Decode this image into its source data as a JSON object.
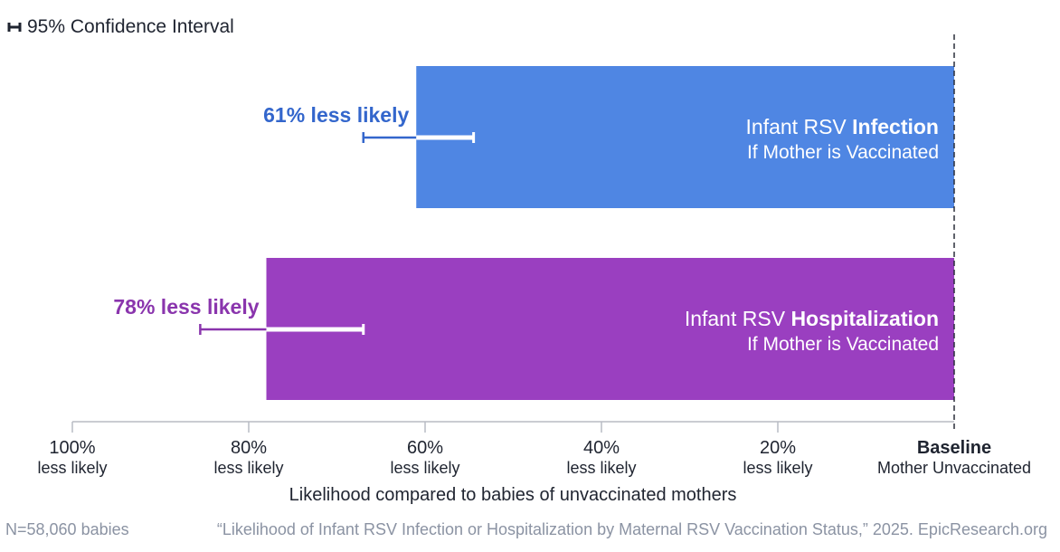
{
  "legend": {
    "label": "95% Confidence Interval",
    "icon": "ci-bracket-icon"
  },
  "chart_data": {
    "type": "bar",
    "orientation": "horizontal",
    "categories": [
      "Infant RSV Infection If Mother is Vaccinated",
      "Infant RSV Hospitalization If Mother is Vaccinated"
    ],
    "values": [
      61,
      78
    ],
    "value_labels": [
      "61% less likely",
      "78% less likely"
    ],
    "bar_labels": [
      {
        "prefix": "Infant RSV ",
        "bold": "Infection",
        "line2": "If Mother is Vaccinated"
      },
      {
        "prefix": "Infant RSV ",
        "bold": "Hospitalization",
        "line2": "If Mother is Vaccinated"
      }
    ],
    "ci": [
      {
        "low": 54.5,
        "high": 67
      },
      {
        "low": 67,
        "high": 85.5
      }
    ],
    "colors": [
      "#4f86e3",
      "#9a3fc0"
    ],
    "label_colors": [
      "#3366cc",
      "#8a35ad"
    ],
    "xlim": [
      100,
      0
    ],
    "xticks": [
      {
        "value": 100,
        "line1": "100%",
        "line2": "less likely",
        "bold": false
      },
      {
        "value": 80,
        "line1": "80%",
        "line2": "less likely",
        "bold": false
      },
      {
        "value": 60,
        "line1": "60%",
        "line2": "less likely",
        "bold": false
      },
      {
        "value": 40,
        "line1": "40%",
        "line2": "less likely",
        "bold": false
      },
      {
        "value": 20,
        "line1": "20%",
        "line2": "less likely",
        "bold": false
      },
      {
        "value": 0,
        "line1": "Baseline",
        "line2": "Mother Unvaccinated",
        "bold": true
      }
    ],
    "xlabel": "Likelihood compared to babies of unvaccinated mothers",
    "grid": false,
    "legend_position": "top-left"
  },
  "footer": {
    "sample": "N=58,060 babies",
    "citation": "“Likelihood of Infant RSV Infection or Hospitalization by Maternal RSV Vaccination Status,” 2025. EpicResearch.org"
  }
}
